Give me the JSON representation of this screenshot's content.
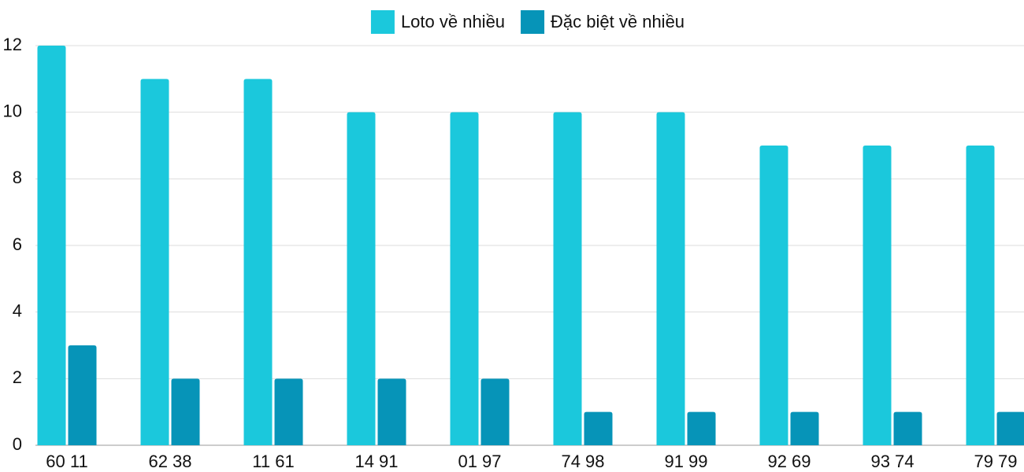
{
  "chart_data": {
    "type": "bar",
    "categories": [
      "60 11",
      "62 38",
      "11 61",
      "14 91",
      "01 97",
      "74 98",
      "91 99",
      "92 69",
      "93 74",
      "79 79"
    ],
    "series": [
      {
        "name": "Loto về nhiều",
        "color": "#1bc8dc",
        "values": [
          12,
          11,
          11,
          10,
          10,
          10,
          10,
          9,
          9,
          9
        ]
      },
      {
        "name": "Đặc biệt về nhiều",
        "color": "#0694b8",
        "values": [
          3,
          2,
          2,
          2,
          2,
          1,
          1,
          1,
          1,
          1
        ]
      }
    ],
    "ylim": [
      0,
      12
    ],
    "yticks": [
      0,
      2,
      4,
      6,
      8,
      10,
      12
    ],
    "grid": true,
    "legend": "top"
  }
}
